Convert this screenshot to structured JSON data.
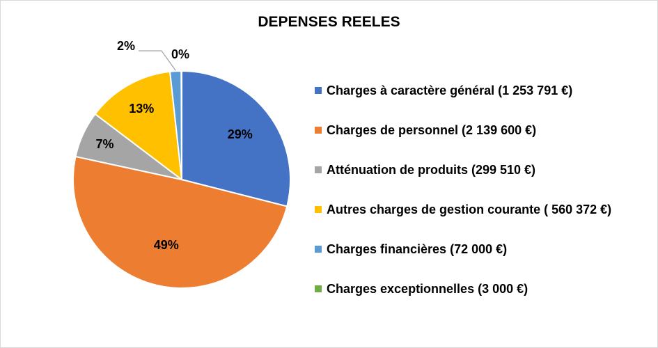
{
  "chart_data": {
    "type": "pie",
    "title": "DEPENSES REELES",
    "slices": [
      {
        "label": "Charges à caractère général (1 253 791 €)",
        "value": 1253791,
        "percent_label": "29%",
        "color": "#4472C4"
      },
      {
        "label": "Charges de personnel (2 139 600 €)",
        "value": 2139600,
        "percent_label": "49%",
        "color": "#ED7D31"
      },
      {
        "label": "Atténuation de produits (299 510 €)",
        "value": 299510,
        "percent_label": "7%",
        "color": "#A5A5A5"
      },
      {
        "label": "Autres charges de gestion courante ( 560 372 €)",
        "value": 560372,
        "percent_label": "13%",
        "color": "#FFC000"
      },
      {
        "label": "Charges financières (72 000 €)",
        "value": 72000,
        "percent_label": "2%",
        "color": "#5B9BD5"
      },
      {
        "label": "Charges exceptionnelles (3 000 €)",
        "value": 3000,
        "percent_label": "0%",
        "color": "#70AD47"
      }
    ],
    "legend_position": "right"
  }
}
